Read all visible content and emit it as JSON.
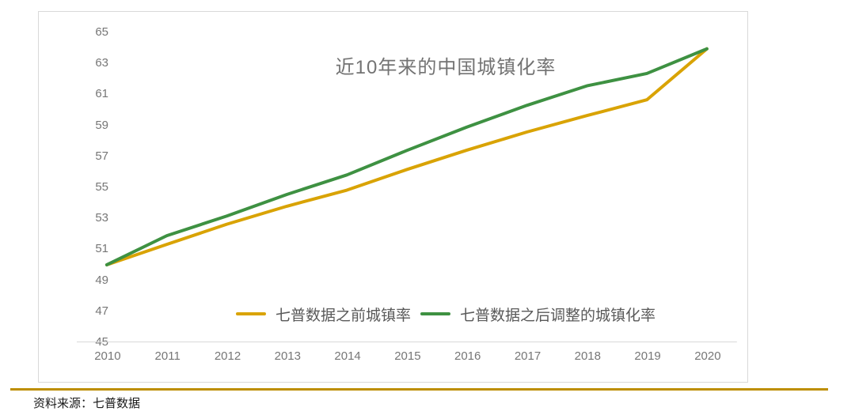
{
  "chart_data": {
    "type": "line",
    "title": "近10年来的中国城镇化率",
    "x": [
      "2010",
      "2011",
      "2012",
      "2013",
      "2014",
      "2015",
      "2016",
      "2017",
      "2018",
      "2019",
      "2020"
    ],
    "series": [
      {
        "name": "七普数据之前城镇率",
        "color": "#D9A304",
        "values": [
          49.95,
          51.27,
          52.57,
          53.73,
          54.77,
          56.1,
          57.35,
          58.52,
          59.58,
          60.6,
          63.89
        ]
      },
      {
        "name": "七普数据之后调整的城镇化率",
        "color": "#3E9142",
        "values": [
          49.95,
          51.83,
          53.1,
          54.49,
          55.75,
          57.33,
          58.84,
          60.24,
          61.5,
          62.3,
          63.89
        ]
      }
    ],
    "ylim": [
      45,
      65
    ],
    "ytick_step": 2,
    "grid": false,
    "legend_position": "bottom-center-inside",
    "axis_color": "#d9d9d9",
    "tick_label_color": "#767676"
  },
  "footer": {
    "source_label": "资料来源：七普数据",
    "rule_color": "#BD8E00"
  }
}
